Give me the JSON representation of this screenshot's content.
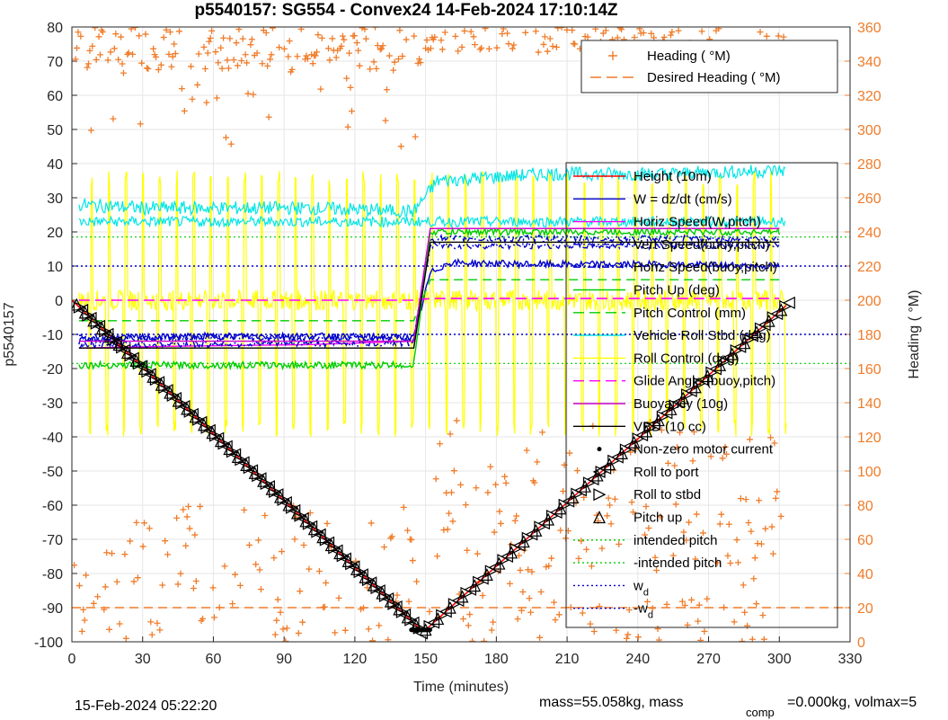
{
  "page": {
    "title": "p5540157: SG554 - Convex24 14-Feb-2024 17:10:14Z",
    "footer_date": "15-Feb-2024 05:22:20",
    "footer_mass": "mass=55.058kg, mass",
    "footer_comp_sub": "comp",
    "footer_rest": "=0.000kg, volmax=5"
  },
  "chart_data": {
    "type": "line",
    "title": "p5540157: SG554 - Convex24 14-Feb-2024 17:10:14Z",
    "xlabel": "Time (minutes)",
    "ylabel": "p5540157",
    "y2label": "Heading (  °M)",
    "xlim": [
      0,
      330
    ],
    "ylim": [
      -100,
      80
    ],
    "y2lim": [
      0,
      360
    ],
    "xticks": [
      0,
      30,
      60,
      90,
      120,
      150,
      180,
      210,
      240,
      270,
      300,
      330
    ],
    "yticks": [
      80,
      70,
      60,
      50,
      40,
      30,
      20,
      10,
      0,
      -10,
      -20,
      -30,
      -40,
      -50,
      -60,
      -70,
      -80,
      -90,
      -100
    ],
    "y2ticks": [
      360,
      340,
      320,
      300,
      280,
      260,
      240,
      220,
      200,
      180,
      160,
      140,
      120,
      100,
      80,
      60,
      40,
      20,
      0
    ],
    "grid": true,
    "legend_heading_placement": "top-right",
    "legend_main_placement": "right",
    "legend_heading": [
      {
        "label": "Heading (  °M)",
        "marker": "+",
        "color": "#f07c2a"
      },
      {
        "label": "Desired Heading (  °M)",
        "line": "dash",
        "color": "#f07c2a"
      }
    ],
    "legend_main": [
      {
        "label": "Height (10m)",
        "line": "solid",
        "color": "#ff0000"
      },
      {
        "label": "W = dz/dt (cm/s)",
        "line": "solid",
        "color": "#0000cc"
      },
      {
        "label": "Horiz Speed(W,pitch)",
        "line": "solid",
        "color": "#ff00ff"
      },
      {
        "label": "Vert Speed(buoy,pitch)",
        "line": "dashdot",
        "color": "#0000cc"
      },
      {
        "label": "Horiz Speed(buoy,pitch)",
        "line": "dashdot",
        "color": "#0000cc"
      },
      {
        "label": "Pitch Up (deg)",
        "line": "solid",
        "color": "#00cc00"
      },
      {
        "label": "Pitch Control (mm)",
        "line": "dash",
        "color": "#00cc00"
      },
      {
        "label": "Vehicle Roll Stbd (deg)",
        "line": "solid",
        "color": "#00e5e5"
      },
      {
        "label": "Roll Control (deg)",
        "line": "solid",
        "color": "#ffff00"
      },
      {
        "label": "Glide Angle (buoy,pitch)",
        "line": "dash",
        "color": "#ff00ff"
      },
      {
        "label": "Buoyancy (10g)",
        "line": "solid",
        "color": "#cc00cc"
      },
      {
        "label": "VBD (10 cc)",
        "line": "solid",
        "color": "#000000"
      },
      {
        "label": "Non-zero motor current",
        "marker": "dot",
        "color": "#000000"
      },
      {
        "label": "Roll to port",
        "marker": "triangle-left",
        "color": "#000000"
      },
      {
        "label": "Roll to stbd",
        "marker": "triangle-right",
        "color": "#000000"
      },
      {
        "label": "Pitch up",
        "marker": "triangle-up",
        "color": "#000000"
      },
      {
        "label": "intended pitch",
        "line": "dot",
        "color": "#00cc00"
      },
      {
        "label": "-intended pitch",
        "line": "dot",
        "color": "#00cc00"
      },
      {
        "label": "w",
        "label_sub": "d",
        "line": "dot",
        "color": "#0000cc"
      },
      {
        "label": "-w",
        "label_sub": "d",
        "line": "dot",
        "color": "#0000cc"
      }
    ],
    "series": [
      {
        "name": "Height (10m)",
        "color": "#ff0000",
        "x": [
          0,
          148,
          150,
          303
        ],
        "y": [
          0,
          -96.5,
          -96.5,
          -1.5
        ]
      },
      {
        "name": "W = dz/dt (cm/s)",
        "color": "#0000cc",
        "x": [
          3,
          20,
          60,
          100,
          145,
          152,
          160,
          200,
          250,
          300
        ],
        "y": [
          -12,
          -11,
          -10.5,
          -10.5,
          -11,
          8,
          11,
          10.5,
          10.5,
          10
        ]
      },
      {
        "name": "Horiz Speed(W,pitch)",
        "color": "#ff00ff",
        "x": [
          3,
          40,
          100,
          145,
          152,
          200,
          300
        ],
        "y": [
          -14,
          -13.5,
          -13,
          -12,
          21,
          21,
          21
        ]
      },
      {
        "name": "Vert Speed(buoy,pitch)",
        "color": "#0000cc",
        "x": [
          3,
          145,
          152,
          300
        ],
        "y": [
          -11,
          -11,
          16,
          16
        ]
      },
      {
        "name": "Horiz Speed(buoy,pitch)",
        "color": "#0000cc",
        "x": [
          3,
          145,
          152,
          300
        ],
        "y": [
          -13,
          -12.5,
          18,
          18
        ]
      },
      {
        "name": "Pitch Up (deg)",
        "color": "#00cc00",
        "x": [
          3,
          145,
          152,
          300
        ],
        "y": [
          -19,
          -19,
          20,
          20
        ]
      },
      {
        "name": "Pitch Control (mm)",
        "color": "#00cc00",
        "x": [
          3,
          145,
          152,
          300
        ],
        "y": [
          -6,
          -6,
          6,
          6
        ]
      },
      {
        "name": "Vehicle Roll Stbd (deg)",
        "color": "#00e5e5",
        "x": [
          3,
          30,
          60,
          100,
          145,
          155,
          200,
          250,
          300
        ],
        "y": [
          28,
          27,
          27,
          27,
          26,
          35,
          37,
          37,
          38
        ]
      },
      {
        "name": "Glide Angle (buoy,pitch)",
        "color": "#ff00ff",
        "x": [
          3,
          145,
          152,
          300
        ],
        "y": [
          0,
          0,
          0.5,
          0.5
        ]
      },
      {
        "name": "Buoyancy (10g)",
        "color": "#cc00cc",
        "x": [
          3,
          145,
          152,
          300
        ],
        "y": [
          -12,
          -12,
          21,
          21
        ]
      },
      {
        "name": "VBD (10 cc)",
        "color": "#000000",
        "x": [
          3,
          145,
          152,
          300
        ],
        "y": [
          -14,
          -14,
          17,
          17
        ]
      },
      {
        "name": "intended pitch",
        "color": "#00cc00",
        "x": [
          0,
          330
        ],
        "y": [
          18.5,
          18.5
        ]
      },
      {
        "name": "-intended pitch",
        "color": "#00cc00",
        "x": [
          0,
          330
        ],
        "y": [
          -18.5,
          -18.5
        ]
      },
      {
        "name": "w_d",
        "color": "#0000cc",
        "x": [
          0,
          330
        ],
        "y": [
          10,
          10
        ]
      },
      {
        "name": "-w_d",
        "color": "#0000cc",
        "x": [
          0,
          330
        ],
        "y": [
          -10,
          -10
        ]
      }
    ],
    "desired_heading": {
      "name": "Desired Heading",
      "color": "#f07c2a",
      "x": [
        0,
        330
      ],
      "y2": [
        20,
        20
      ]
    }
  }
}
